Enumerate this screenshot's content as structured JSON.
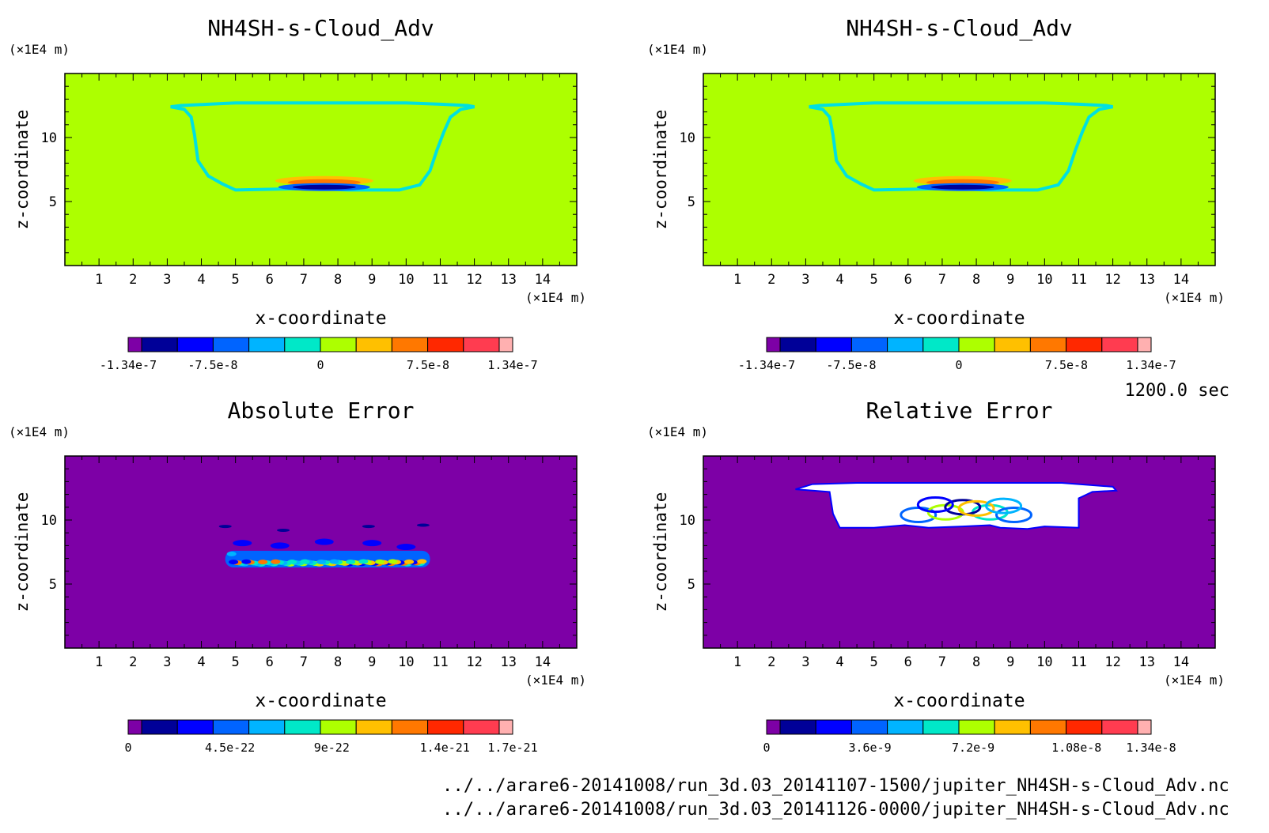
{
  "colors": {
    "background": "#adff00",
    "error_background": "#7d00a6",
    "palette": [
      "#7d00a6",
      "#000098",
      "#0000ff",
      "#0064ff",
      "#00b4ff",
      "#00e8c8",
      "#adff00",
      "#ffc000",
      "#ff7800",
      "#ff2800",
      "#ff3c50",
      "#ffb0b0"
    ],
    "outline": "#00e0e0",
    "void": "#ffffff"
  },
  "footer": {
    "time": "1200.0 sec",
    "file1": "../../arare6-20141008/run_3d.03_20141107-1500/jupiter_NH4SH-s-Cloud_Adv.nc",
    "file2": "../../arare6-20141008/run_3d.03_20141126-0000/jupiter_NH4SH-s-Cloud_Adv.nc"
  },
  "chart_data": [
    {
      "type": "heatmap",
      "title": "NH4SH-s-Cloud_Adv",
      "xlabel": "x-coordinate",
      "ylabel": "z-coordinate",
      "x_unit": "(×1E4 m)",
      "y_unit": "(×1E4 m)",
      "xlim": [
        0,
        15
      ],
      "ylim": [
        0,
        15
      ],
      "xticks": [
        1,
        2,
        3,
        4,
        5,
        6,
        7,
        8,
        9,
        10,
        11,
        12,
        13,
        14
      ],
      "yticks": [
        5,
        10
      ],
      "field": "cloud",
      "colorbar": {
        "min": -1.34e-07,
        "max": 1.34e-07,
        "labels": [
          "-1.34e-7",
          "-7.5e-8",
          "0",
          "7.5e-8",
          "1.34e-7"
        ],
        "label_values": [
          -1.34e-07,
          -7.5e-08,
          0,
          7.5e-08,
          1.34e-07
        ]
      }
    },
    {
      "type": "heatmap",
      "title": "NH4SH-s-Cloud_Adv",
      "xlabel": "x-coordinate",
      "ylabel": "z-coordinate",
      "x_unit": "(×1E4 m)",
      "y_unit": "(×1E4 m)",
      "xlim": [
        0,
        15
      ],
      "ylim": [
        0,
        15
      ],
      "xticks": [
        1,
        2,
        3,
        4,
        5,
        6,
        7,
        8,
        9,
        10,
        11,
        12,
        13,
        14
      ],
      "yticks": [
        5,
        10
      ],
      "field": "cloud",
      "colorbar": {
        "min": -1.34e-07,
        "max": 1.34e-07,
        "labels": [
          "-1.34e-7",
          "-7.5e-8",
          "0",
          "7.5e-8",
          "1.34e-7"
        ],
        "label_values": [
          -1.34e-07,
          -7.5e-08,
          0,
          7.5e-08,
          1.34e-07
        ]
      }
    },
    {
      "type": "heatmap",
      "title": "Absolute Error",
      "xlabel": "x-coordinate",
      "ylabel": "z-coordinate",
      "x_unit": "(×1E4 m)",
      "y_unit": "(×1E4 m)",
      "xlim": [
        0,
        15
      ],
      "ylim": [
        0,
        15
      ],
      "xticks": [
        1,
        2,
        3,
        4,
        5,
        6,
        7,
        8,
        9,
        10,
        11,
        12,
        13,
        14
      ],
      "yticks": [
        5,
        10
      ],
      "field": "abserr",
      "colorbar": {
        "min": 0,
        "max": 1.7e-21,
        "labels": [
          "0",
          "4.5e-22",
          "9e-22",
          "1.4e-21",
          "1.7e-21"
        ],
        "label_values": [
          0,
          4.5e-22,
          9e-22,
          1.4e-21,
          1.7e-21
        ]
      }
    },
    {
      "type": "heatmap",
      "title": "Relative Error",
      "xlabel": "x-coordinate",
      "ylabel": "z-coordinate",
      "x_unit": "(×1E4 m)",
      "y_unit": "(×1E4 m)",
      "xlim": [
        0,
        15
      ],
      "ylim": [
        0,
        15
      ],
      "xticks": [
        1,
        2,
        3,
        4,
        5,
        6,
        7,
        8,
        9,
        10,
        11,
        12,
        13,
        14
      ],
      "yticks": [
        5,
        10
      ],
      "field": "relerr",
      "colorbar": {
        "min": 0,
        "max": 1.34e-08,
        "labels": [
          "0",
          "3.6e-9",
          "7.2e-9",
          "1.08e-8",
          "1.34e-8"
        ],
        "label_values": [
          0,
          3.6e-09,
          7.2e-09,
          1.08e-08,
          1.34e-08
        ]
      }
    }
  ]
}
